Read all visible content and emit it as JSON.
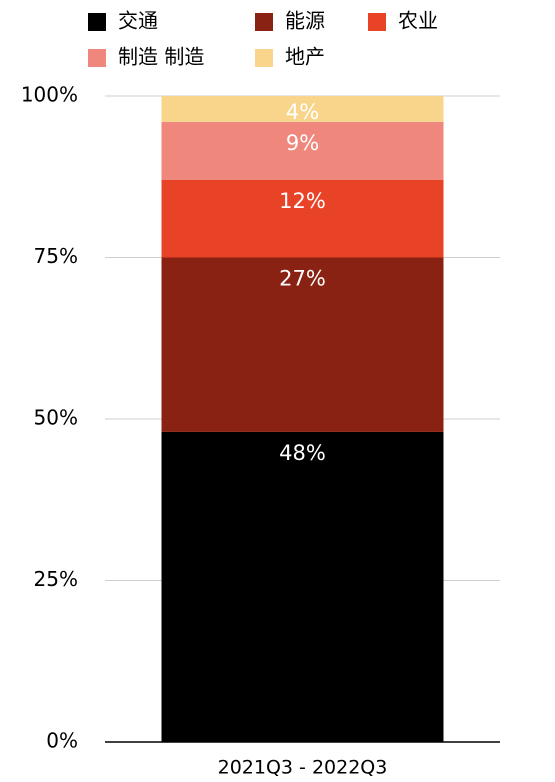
{
  "chart_data": {
    "type": "stacked_bar",
    "categories": [
      "2021Q3 - 2022Q3"
    ],
    "series": [
      {
        "name": "交通",
        "color": "#000000",
        "values": [
          48
        ],
        "value_labels": [
          "48%"
        ]
      },
      {
        "name": "能源",
        "color": "#8a2213",
        "values": [
          27
        ],
        "value_labels": [
          "27%"
        ]
      },
      {
        "name": "农业",
        "color": "#e84227",
        "values": [
          12
        ],
        "value_labels": [
          "12%"
        ]
      },
      {
        "name": "制造 制造",
        "color": "#f0877d",
        "values": [
          9
        ],
        "value_labels": [
          "9%"
        ]
      },
      {
        "name": "地产",
        "color": "#f8d58a",
        "values": [
          4
        ],
        "value_labels": [
          "4%"
        ]
      }
    ],
    "ylim": [
      0,
      100
    ],
    "yticks": [
      {
        "value": 0,
        "label": "0%"
      },
      {
        "value": 25,
        "label": "25%"
      },
      {
        "value": 50,
        "label": "50%"
      },
      {
        "value": 75,
        "label": "75%"
      },
      {
        "value": 100,
        "label": "100%"
      }
    ],
    "grid": true,
    "legend": "top"
  }
}
